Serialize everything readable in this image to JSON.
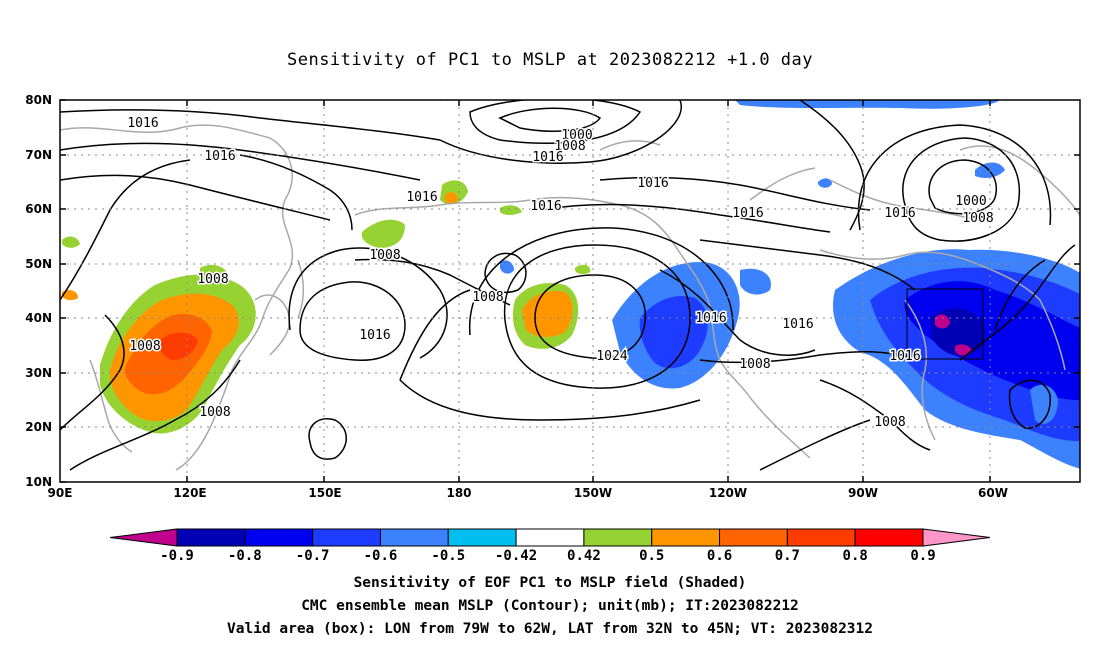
{
  "title": "Sensitivity of PC1 to MSLP at 2023082212 +1.0 day",
  "lat_labels": [
    "80N",
    "70N",
    "60N",
    "50N",
    "40N",
    "30N",
    "20N",
    "10N"
  ],
  "lon_labels": [
    "90E",
    "120E",
    "150E",
    "180",
    "150W",
    "120W",
    "90W",
    "60W"
  ],
  "contour_labels": [
    "1016",
    "1016",
    "1000",
    "1008",
    "1016",
    "1016",
    "1016",
    "1016",
    "1016",
    "1016",
    "1000",
    "1008",
    "1008",
    "1008",
    "1008",
    "1016",
    "1024",
    "1016",
    "1016",
    "1008",
    "1008",
    "1016",
    "1008",
    "1008"
  ],
  "colorbar": {
    "colors": [
      "#c0008c",
      "#0000b4",
      "#0000f0",
      "#1e3cff",
      "#3c82ff",
      "#00bef0",
      "#ffffff",
      "#96d232",
      "#ff9600",
      "#ff6400",
      "#ff3c00",
      "#ff0000",
      "#ff96c8"
    ],
    "labels": [
      "-0.9",
      "-0.8",
      "-0.7",
      "-0.6",
      "-0.5",
      "-0.42",
      "0.42",
      "0.5",
      "0.6",
      "0.7",
      "0.8",
      "0.9"
    ]
  },
  "valid_box": {
    "lon": "79W to 62W",
    "lat": "32N to 45N"
  },
  "captions": {
    "line1": "Sensitivity of EOF PC1 to MSLP field (Shaded)",
    "line2": "CMC ensemble mean MSLP (Contour); unit(mb); IT:2023082212",
    "line3": "Valid area (box): LON from 79W to 62W, LAT from 32N to 45N; VT: 2023082312"
  }
}
